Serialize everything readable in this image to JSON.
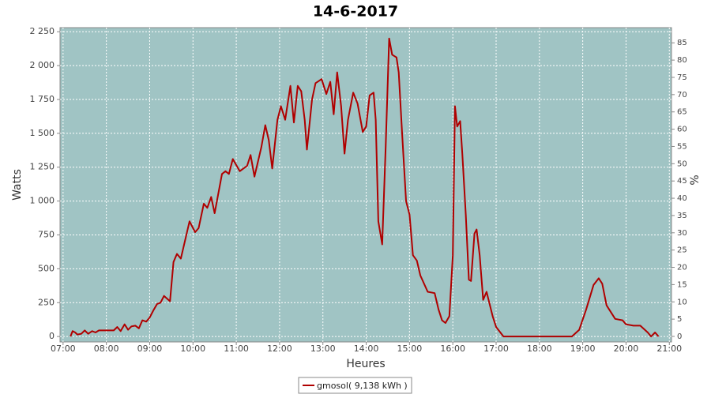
{
  "chart_data": {
    "type": "line",
    "title": "14-6-2017",
    "x_label": "Heures",
    "y_label": "Watts",
    "y2_label": "%",
    "x": [
      7.17,
      7.22,
      7.28,
      7.33,
      7.42,
      7.5,
      7.58,
      7.67,
      7.75,
      7.83,
      8,
      8.17,
      8.25,
      8.33,
      8.42,
      8.5,
      8.58,
      8.67,
      8.75,
      8.83,
      8.92,
      9,
      9.08,
      9.17,
      9.25,
      9.33,
      9.47,
      9.55,
      9.63,
      9.72,
      9.92,
      10.05,
      10.13,
      10.25,
      10.33,
      10.42,
      10.5,
      10.67,
      10.75,
      10.83,
      10.92,
      11.08,
      11.25,
      11.33,
      11.42,
      11.58,
      11.67,
      11.75,
      11.83,
      11.95,
      12.03,
      12.13,
      12.25,
      12.33,
      12.42,
      12.5,
      12.58,
      12.63,
      12.75,
      12.83,
      12.97,
      13.08,
      13.17,
      13.25,
      13.33,
      13.42,
      13.5,
      13.58,
      13.7,
      13.8,
      13.92,
      14,
      14.08,
      14.17,
      14.22,
      14.28,
      14.37,
      14.45,
      14.53,
      14.6,
      14.7,
      14.75,
      14.83,
      14.92,
      15,
      15.08,
      15.17,
      15.25,
      15.42,
      15.58,
      15.67,
      15.75,
      15.83,
      15.92,
      16,
      16.05,
      16.1,
      16.17,
      16.22,
      16.3,
      16.37,
      16.42,
      16.5,
      16.55,
      16.62,
      16.7,
      16.78,
      16.92,
      17,
      17.17,
      18.75,
      18.92,
      19.08,
      19.25,
      19.37,
      19.45,
      19.55,
      19.75,
      19.92,
      20,
      20.17,
      20.33,
      20.5,
      20.58,
      20.67,
      20.75
    ],
    "series": [
      {
        "name": "gmosol( 9,138 kWh )",
        "color": "#b00000",
        "values": [
          0,
          40,
          30,
          15,
          20,
          45,
          20,
          40,
          30,
          45,
          45,
          45,
          70,
          40,
          90,
          50,
          75,
          80,
          60,
          120,
          110,
          140,
          190,
          240,
          250,
          300,
          260,
          550,
          610,
          575,
          850,
          770,
          800,
          980,
          950,
          1030,
          910,
          1200,
          1220,
          1200,
          1310,
          1220,
          1260,
          1340,
          1180,
          1400,
          1560,
          1450,
          1240,
          1600,
          1700,
          1600,
          1850,
          1580,
          1850,
          1810,
          1600,
          1380,
          1750,
          1870,
          1900,
          1790,
          1880,
          1640,
          1950,
          1700,
          1350,
          1600,
          1800,
          1720,
          1510,
          1550,
          1780,
          1800,
          1600,
          850,
          680,
          1400,
          2200,
          2080,
          2060,
          1950,
          1500,
          1000,
          900,
          600,
          560,
          450,
          330,
          320,
          200,
          120,
          100,
          150,
          600,
          1700,
          1550,
          1590,
          1350,
          900,
          420,
          410,
          760,
          790,
          600,
          270,
          330,
          150,
          70,
          0,
          0,
          50,
          200,
          380,
          430,
          390,
          230,
          130,
          120,
          90,
          80,
          80,
          30,
          0,
          30,
          0
        ]
      }
    ],
    "xlim": [
      6.93,
      21.05
    ],
    "xticks": [
      {
        "value": 7,
        "label": "07:00"
      },
      {
        "value": 8,
        "label": "08:00"
      },
      {
        "value": 9,
        "label": "09:00"
      },
      {
        "value": 10,
        "label": "10:00"
      },
      {
        "value": 11,
        "label": "11:00"
      },
      {
        "value": 12,
        "label": "12:00"
      },
      {
        "value": 13,
        "label": "13:00"
      },
      {
        "value": 14,
        "label": "14:00"
      },
      {
        "value": 15,
        "label": "15:00"
      },
      {
        "value": 16,
        "label": "16:00"
      },
      {
        "value": 17,
        "label": "17:00"
      },
      {
        "value": 18,
        "label": "18:00"
      },
      {
        "value": 19,
        "label": "19:00"
      },
      {
        "value": 20,
        "label": "20:00"
      },
      {
        "value": 21,
        "label": "21:00"
      }
    ],
    "ylim": [
      -40,
      2280
    ],
    "yticks": [
      0,
      250,
      500,
      750,
      {
        "value": 1000,
        "label": "1 000"
      },
      {
        "value": 1250,
        "label": "1 250"
      },
      {
        "value": 1500,
        "label": "1 500"
      },
      {
        "value": 1750,
        "label": "1 750"
      },
      {
        "value": 2000,
        "label": "2 000"
      },
      {
        "value": 2250,
        "label": "2 250"
      }
    ],
    "y2lim": [
      -1.6,
      89.4
    ],
    "y2ticks": [
      0,
      5,
      10,
      15,
      20,
      25,
      30,
      35,
      40,
      45,
      50,
      55,
      60,
      65,
      70,
      75,
      80,
      85
    ],
    "grid": true,
    "legend": "bottom",
    "plot_background": "#a0c4c4"
  }
}
